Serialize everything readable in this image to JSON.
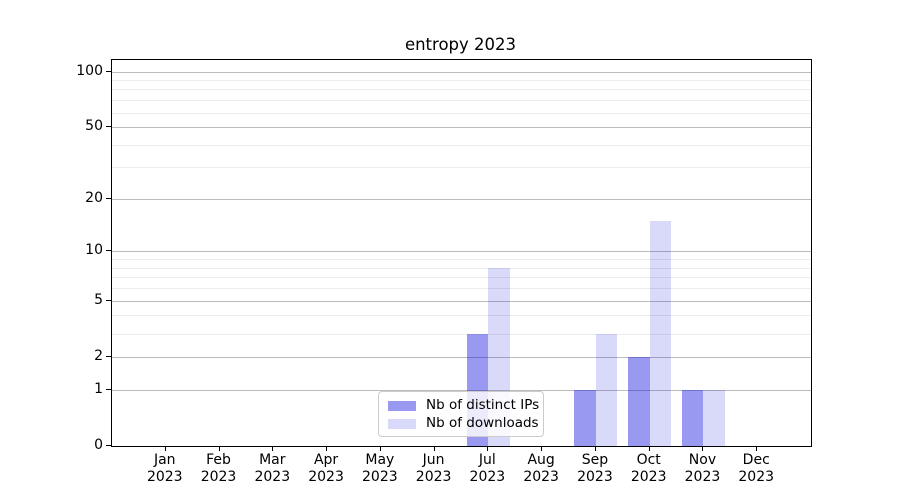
{
  "title": "entropy 2023",
  "chart_data": {
    "type": "bar",
    "title": "entropy 2023",
    "xlabel": "",
    "ylabel": "",
    "scale": "log1p",
    "ylim": [
      0,
      117
    ],
    "grid": true,
    "legend_position": "lower center",
    "categories": [
      {
        "month": "Jan",
        "year": "2023"
      },
      {
        "month": "Feb",
        "year": "2023"
      },
      {
        "month": "Mar",
        "year": "2023"
      },
      {
        "month": "Apr",
        "year": "2023"
      },
      {
        "month": "May",
        "year": "2023"
      },
      {
        "month": "Jun",
        "year": "2023"
      },
      {
        "month": "Jul",
        "year": "2023"
      },
      {
        "month": "Aug",
        "year": "2023"
      },
      {
        "month": "Sep",
        "year": "2023"
      },
      {
        "month": "Oct",
        "year": "2023"
      },
      {
        "month": "Nov",
        "year": "2023"
      },
      {
        "month": "Dec",
        "year": "2023"
      }
    ],
    "series": [
      {
        "name": "Nb of distinct IPs",
        "color": "rgba(0,0,220,0.40)",
        "values": [
          0,
          0,
          0,
          0,
          0,
          0,
          3,
          0,
          1,
          2,
          1,
          0
        ]
      },
      {
        "name": "Nb of downloads",
        "color": "rgba(0,0,220,0.15)",
        "values": [
          0,
          0,
          0,
          0,
          0,
          0,
          8,
          0,
          3,
          15,
          1,
          0
        ]
      }
    ],
    "yticks": [
      0,
      1,
      2,
      5,
      10,
      20,
      50,
      100
    ],
    "ytick_labels": [
      "0",
      "1",
      "2",
      "5",
      "10",
      "20",
      "50",
      "100"
    ],
    "minor_gridlines": [
      3,
      4,
      6,
      7,
      8,
      9,
      30,
      40,
      60,
      70,
      80,
      90
    ]
  },
  "colors": {
    "background": "#ffffff",
    "spine": "#000000",
    "grid_major": "#bcbcbc",
    "grid_minor": "#ececec",
    "legend_border": "#cccccc"
  },
  "legend": {
    "items": [
      "Nb of distinct IPs",
      "Nb of downloads"
    ]
  }
}
